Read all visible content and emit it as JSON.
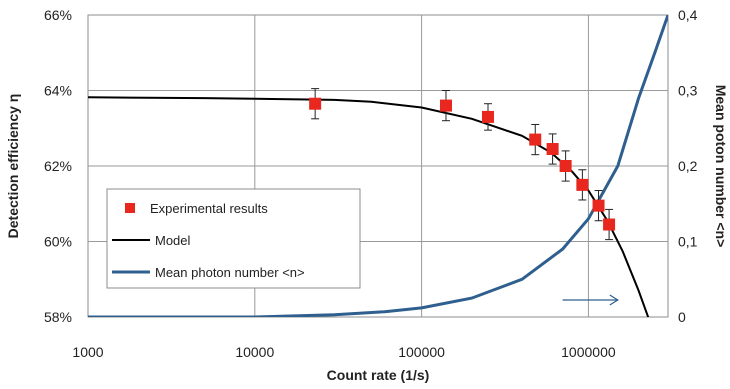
{
  "chart_data": {
    "type": "line",
    "xlabel": "Count rate (1/s)",
    "ylabel": "Detection efficiency η",
    "y2label": "Mean poton number <n>",
    "x_scale": "log",
    "xlim": [
      1000,
      3000000
    ],
    "ylim": [
      58,
      66
    ],
    "y2lim": [
      0,
      0.4
    ],
    "grid": true,
    "legend_position": "lower-left",
    "x_ticks": [
      {
        "value": 1000,
        "label": "1000"
      },
      {
        "value": 10000,
        "label": "10000"
      },
      {
        "value": 100000,
        "label": "100000"
      },
      {
        "value": 1000000,
        "label": "1000000"
      }
    ],
    "y_ticks": [
      {
        "value": 58,
        "label": "58%"
      },
      {
        "value": 60,
        "label": "60%"
      },
      {
        "value": 62,
        "label": "62%"
      },
      {
        "value": 64,
        "label": "64%"
      },
      {
        "value": 66,
        "label": "66%"
      }
    ],
    "y2_ticks": [
      {
        "value": 0,
        "label": "0"
      },
      {
        "value": 0.1,
        "label": "0,1"
      },
      {
        "value": 0.2,
        "label": "0,2"
      },
      {
        "value": 0.3,
        "label": "0,3"
      },
      {
        "value": 0.4,
        "label": "0,4"
      }
    ],
    "series": [
      {
        "name": "Experimental results",
        "kind": "scatter",
        "axis": "left",
        "color": "#e8281e",
        "x": [
          23000,
          140000,
          250000,
          480000,
          610000,
          730000,
          920000,
          1150000,
          1330000
        ],
        "y": [
          63.65,
          63.6,
          63.3,
          62.7,
          62.45,
          62.0,
          61.5,
          60.95,
          60.45
        ],
        "error": [
          0.4,
          0.4,
          0.35,
          0.4,
          0.4,
          0.4,
          0.4,
          0.4,
          0.4
        ]
      },
      {
        "name": "Model",
        "kind": "line",
        "axis": "left",
        "color": "#000000",
        "x": [
          1000,
          5000,
          10000,
          30000,
          50000,
          100000,
          200000,
          400000,
          600000,
          800000,
          1000000,
          1300000,
          1600000,
          2000000,
          2300000
        ],
        "y": [
          63.82,
          63.8,
          63.78,
          63.75,
          63.7,
          63.55,
          63.25,
          62.8,
          62.35,
          61.85,
          61.35,
          60.55,
          59.75,
          58.7,
          57.95
        ]
      },
      {
        "name": "Mean photon number <n>",
        "kind": "line",
        "axis": "right",
        "color": "#2e5f8e",
        "x": [
          1000,
          10000,
          30000,
          60000,
          100000,
          200000,
          400000,
          700000,
          1000000,
          1500000,
          2000000,
          2500000,
          3000000
        ],
        "y": [
          0.0,
          0.0,
          0.003,
          0.007,
          0.012,
          0.025,
          0.05,
          0.09,
          0.13,
          0.2,
          0.29,
          0.35,
          0.4
        ]
      }
    ],
    "annotations": [
      {
        "type": "arrow",
        "direction": "right",
        "color": "#2e5f8e",
        "x_from": 700000,
        "x_to": 1500000,
        "y": 58.45
      }
    ]
  }
}
